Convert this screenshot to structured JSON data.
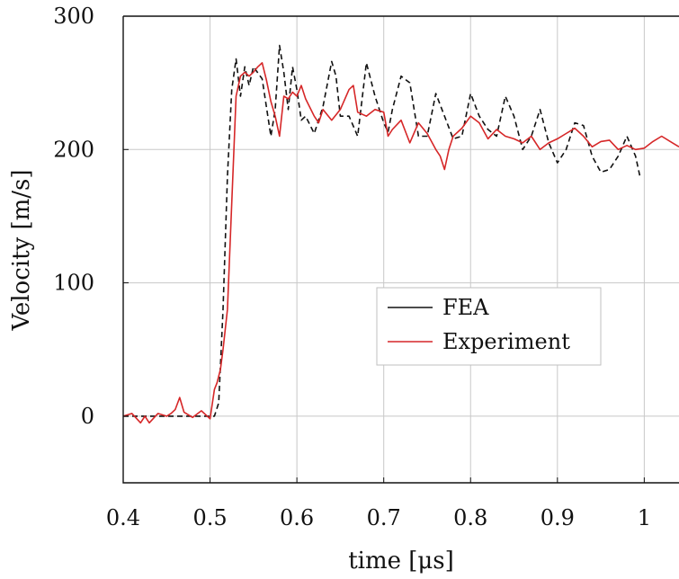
{
  "chart_data": {
    "type": "line",
    "title": "",
    "xlabel": "time [μs]",
    "ylabel": "Velocity [m/s]",
    "xlim": [
      0.4,
      1.04
    ],
    "ylim": [
      -50,
      300
    ],
    "xticks": [
      0.4,
      0.5,
      0.6,
      0.7,
      0.8,
      0.9,
      1.0
    ],
    "xtick_labels": [
      "0.4",
      "0.5",
      "0.6",
      "0.7",
      "0.8",
      "0.9",
      "1"
    ],
    "yticks": [
      0,
      100,
      200,
      300
    ],
    "ytick_labels": [
      "0",
      "100",
      "200",
      "300"
    ],
    "grid": true,
    "legend_position": "center-right",
    "series": [
      {
        "name": "FEA",
        "color": "#111111",
        "style": "dashed",
        "x": [
          0.4,
          0.45,
          0.49,
          0.505,
          0.51,
          0.515,
          0.52,
          0.525,
          0.53,
          0.535,
          0.54,
          0.545,
          0.55,
          0.56,
          0.57,
          0.575,
          0.58,
          0.585,
          0.59,
          0.595,
          0.6,
          0.605,
          0.61,
          0.62,
          0.63,
          0.64,
          0.645,
          0.65,
          0.66,
          0.67,
          0.68,
          0.69,
          0.7,
          0.705,
          0.71,
          0.72,
          0.73,
          0.74,
          0.75,
          0.76,
          0.77,
          0.78,
          0.79,
          0.8,
          0.81,
          0.82,
          0.83,
          0.84,
          0.85,
          0.86,
          0.87,
          0.88,
          0.89,
          0.9,
          0.91,
          0.92,
          0.93,
          0.94,
          0.95,
          0.96,
          0.97,
          0.98,
          0.99,
          0.995
        ],
        "y": [
          0,
          0,
          0,
          0,
          10,
          80,
          180,
          245,
          268,
          240,
          262,
          248,
          262,
          253,
          210,
          230,
          278,
          258,
          230,
          262,
          245,
          222,
          225,
          212,
          232,
          266,
          255,
          225,
          225,
          210,
          265,
          240,
          220,
          213,
          230,
          255,
          250,
          210,
          210,
          242,
          225,
          208,
          210,
          242,
          225,
          215,
          210,
          240,
          225,
          200,
          210,
          230,
          205,
          190,
          200,
          220,
          218,
          195,
          183,
          185,
          195,
          210,
          195,
          180
        ]
      },
      {
        "name": "Experiment",
        "color": "#d62728",
        "style": "solid",
        "x": [
          0.4,
          0.41,
          0.42,
          0.425,
          0.43,
          0.44,
          0.45,
          0.455,
          0.46,
          0.465,
          0.47,
          0.48,
          0.49,
          0.5,
          0.505,
          0.508,
          0.512,
          0.515,
          0.52,
          0.525,
          0.53,
          0.535,
          0.54,
          0.545,
          0.55,
          0.555,
          0.56,
          0.565,
          0.57,
          0.575,
          0.58,
          0.585,
          0.59,
          0.595,
          0.6,
          0.605,
          0.61,
          0.62,
          0.625,
          0.63,
          0.64,
          0.65,
          0.66,
          0.665,
          0.67,
          0.68,
          0.69,
          0.7,
          0.705,
          0.71,
          0.72,
          0.73,
          0.74,
          0.75,
          0.76,
          0.765,
          0.77,
          0.775,
          0.78,
          0.79,
          0.8,
          0.81,
          0.82,
          0.83,
          0.84,
          0.85,
          0.86,
          0.87,
          0.88,
          0.89,
          0.9,
          0.91,
          0.92,
          0.93,
          0.94,
          0.95,
          0.96,
          0.97,
          0.98,
          0.99,
          1.0,
          1.01,
          1.02,
          1.03,
          1.04
        ],
        "y": [
          0,
          2,
          -5,
          0,
          -5,
          2,
          0,
          2,
          5,
          14,
          3,
          -1,
          4,
          -2,
          20,
          25,
          35,
          50,
          80,
          160,
          240,
          255,
          258,
          255,
          258,
          262,
          265,
          252,
          236,
          225,
          210,
          240,
          238,
          243,
          240,
          248,
          238,
          225,
          220,
          230,
          222,
          230,
          245,
          248,
          228,
          225,
          230,
          228,
          210,
          215,
          222,
          205,
          220,
          212,
          200,
          195,
          185,
          200,
          210,
          216,
          225,
          220,
          208,
          215,
          210,
          208,
          205,
          210,
          200,
          205,
          208,
          212,
          216,
          210,
          202,
          206,
          207,
          200,
          203,
          200,
          201,
          206,
          210,
          206,
          202
        ]
      }
    ]
  }
}
